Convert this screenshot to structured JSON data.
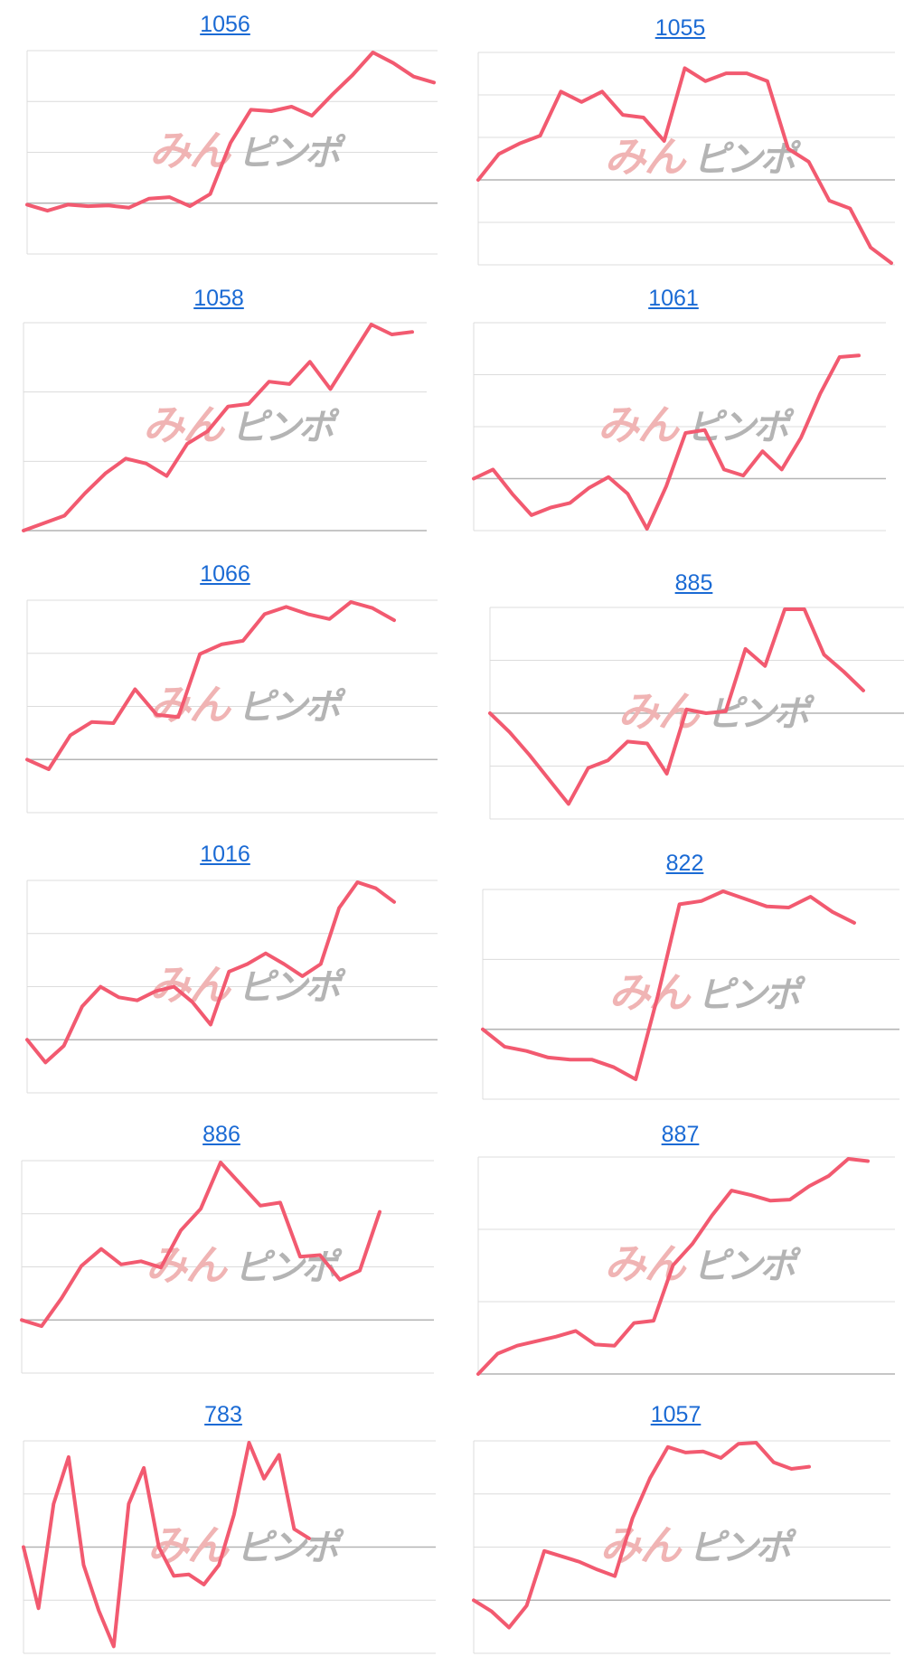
{
  "line_color": "#f25a70",
  "grid_color": "#dcdcdc",
  "baseline_color": "#b4b4b4",
  "watermark": {
    "left_text": "みん",
    "right_text": "ピンポ",
    "left_color": "#f0b4b4",
    "right_color": "#b4b4b4"
  },
  "chart_data": [
    {
      "type": "line",
      "title": "1056",
      "grid_rows": 4,
      "baseline_row": 3,
      "values": [
        -1.0,
        -5.0,
        -1.0,
        -2.0,
        -1.5,
        -3.0,
        3.0,
        4.0,
        -2.0,
        6.0,
        40.0,
        62.0,
        61.0,
        64.0,
        58.0,
        72.0,
        85.0,
        100.0,
        93.0,
        84.0,
        80.0
      ]
    },
    {
      "type": "line",
      "title": "1055",
      "grid_rows": 5,
      "baseline_row": 3,
      "values": [
        0.0,
        10.0,
        14.0,
        17.0,
        34.0,
        30.0,
        34.0,
        25.0,
        24.0,
        15.0,
        43.0,
        38.0,
        41.0,
        41.0,
        38.0,
        12.0,
        7.0,
        -8.0,
        -11.0,
        -26.0,
        -32.0
      ]
    },
    {
      "type": "line",
      "title": "1058",
      "grid_rows": 3,
      "baseline_row": 3,
      "values": [
        0.0,
        3.0,
        6.0,
        15.0,
        23.0,
        29.0,
        27.0,
        22.0,
        35.0,
        40.0,
        50.0,
        51.0,
        60.0,
        59.0,
        68.0,
        57.0,
        70.0,
        83.0,
        79.0,
        80.0
      ]
    },
    {
      "type": "line",
      "title": "1061",
      "grid_rows": 4,
      "baseline_row": 3,
      "values": [
        0.0,
        6.0,
        -10.0,
        -24.0,
        -19.0,
        -16.0,
        -6.0,
        1.0,
        -10.0,
        -33.0,
        -5.0,
        30.0,
        32.0,
        6.0,
        2.0,
        18.0,
        6.0,
        27.0,
        56.0,
        80.0,
        81.0
      ]
    },
    {
      "type": "line",
      "title": "1066",
      "grid_rows": 4,
      "baseline_row": 3,
      "values": [
        0.0,
        -8.0,
        20.0,
        31.0,
        30.0,
        58.0,
        37.0,
        35.0,
        87.0,
        95.0,
        98.0,
        120.0,
        126.0,
        120.0,
        116.0,
        130.0,
        125.0,
        115.0
      ]
    },
    {
      "type": "line",
      "title": "885",
      "grid_rows": 4,
      "baseline_row": 2,
      "values": [
        0.0,
        -10.0,
        -22.0,
        -35.0,
        -48.0,
        -29.0,
        -25.0,
        -15.0,
        -16.0,
        -32.0,
        2.0,
        0.0,
        1.0,
        34.0,
        25.0,
        55.0,
        55.0,
        31.0,
        22.0,
        12.0
      ]
    },
    {
      "type": "line",
      "title": "1016",
      "grid_rows": 4,
      "baseline_row": 3,
      "values": [
        0.0,
        -15.0,
        -4.0,
        22.0,
        35.0,
        28.0,
        26.0,
        32.0,
        35.0,
        25.0,
        10.0,
        45.0,
        50.0,
        57.0,
        50.0,
        42.0,
        50.0,
        87.0,
        104.0,
        100.0,
        91.0
      ]
    },
    {
      "type": "line",
      "title": "822",
      "grid_rows": 3,
      "baseline_row": 2,
      "values": [
        0.0,
        -16.0,
        -20.0,
        -26.0,
        -28.0,
        -28.0,
        -35.0,
        -46.0,
        30.0,
        115.0,
        118.0,
        127.0,
        120.0,
        113.0,
        112.0,
        122.0,
        108.0,
        98.0
      ]
    },
    {
      "type": "line",
      "title": "886",
      "grid_rows": 4,
      "baseline_row": 3,
      "values": [
        0.0,
        -4.0,
        14.0,
        35.0,
        46.0,
        36.0,
        38.0,
        34.0,
        58.0,
        72.0,
        102.0,
        88.0,
        74.0,
        76.0,
        41.0,
        42.0,
        26.0,
        32.0,
        70.0
      ]
    },
    {
      "type": "line",
      "title": "887",
      "grid_rows": 3,
      "baseline_row": 3,
      "values": [
        0.0,
        18.0,
        25.0,
        29.0,
        33.0,
        38.0,
        26.0,
        25.0,
        45.0,
        47.0,
        96.0,
        115.0,
        140.0,
        162.0,
        158.0,
        153.0,
        154.0,
        166.0,
        175.0,
        190.0,
        188.0
      ]
    },
    {
      "type": "line",
      "title": "783",
      "grid_rows": 4,
      "baseline_row": 2,
      "values": [
        0.0,
        -85.0,
        60.0,
        125.0,
        -25.0,
        -88.0,
        -138.0,
        60.0,
        110.0,
        0.0,
        -40.0,
        -38.0,
        -52.0,
        -25.0,
        45.0,
        145.0,
        95.0,
        128.0,
        25.0,
        12.0
      ]
    },
    {
      "type": "line",
      "title": "1057",
      "grid_rows": 4,
      "baseline_row": 3,
      "values": [
        0.0,
        -10.0,
        -25.0,
        -5.0,
        45.0,
        40.0,
        35.0,
        28.0,
        22.0,
        75.0,
        112.0,
        140.0,
        135.0,
        136.0,
        130.0,
        143.0,
        144.0,
        126.0,
        120.0,
        122.0
      ]
    }
  ]
}
